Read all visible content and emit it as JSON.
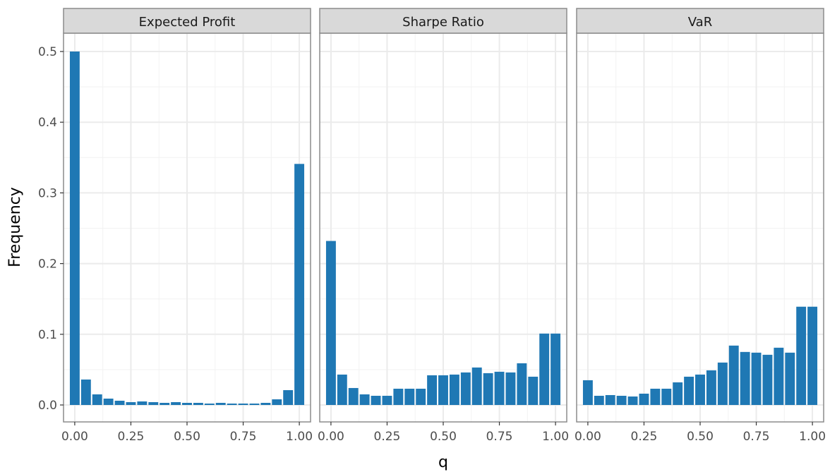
{
  "chart_data": {
    "type": "bar",
    "layout": "facets",
    "xlabel": "q",
    "ylabel": "Frequency",
    "xlim": [
      -0.05,
      1.05
    ],
    "ylim": [
      0,
      0.52
    ],
    "x_ticks": [
      0,
      0.25,
      0.5,
      0.75,
      1.0
    ],
    "x_tick_labels": [
      "0.00",
      "0.25",
      "0.50",
      "0.75",
      "1.00"
    ],
    "y_ticks": [
      0,
      0.1,
      0.2,
      0.3,
      0.4,
      0.5
    ],
    "y_tick_labels": [
      "0.0",
      "0.1",
      "0.2",
      "0.3",
      "0.4",
      "0.5"
    ],
    "bar_color": "#1f78b4",
    "grid": true,
    "theme": "bw",
    "bins_x": [
      0.0,
      0.05,
      0.1,
      0.15,
      0.2,
      0.25,
      0.3,
      0.35,
      0.4,
      0.45,
      0.5,
      0.55,
      0.6,
      0.65,
      0.7,
      0.75,
      0.8,
      0.85,
      0.9,
      0.95,
      1.0
    ],
    "facets": [
      {
        "label": "Expected Profit",
        "values": [
          0.5,
          0.036,
          0.015,
          0.009,
          0.006,
          0.004,
          0.005,
          0.004,
          0.003,
          0.004,
          0.003,
          0.003,
          0.002,
          0.003,
          0.002,
          0.002,
          0.002,
          0.003,
          0.008,
          0.021,
          0.341
        ]
      },
      {
        "label": "Sharpe Ratio",
        "values": [
          0.232,
          0.043,
          0.024,
          0.015,
          0.013,
          0.013,
          0.023,
          0.023,
          0.023,
          0.042,
          0.042,
          0.043,
          0.046,
          0.053,
          0.045,
          0.047,
          0.046,
          0.059,
          0.04,
          0.101,
          0.101
        ]
      },
      {
        "label": "VaR",
        "values": [
          0.035,
          0.013,
          0.014,
          0.013,
          0.012,
          0.016,
          0.023,
          0.023,
          0.032,
          0.04,
          0.043,
          0.049,
          0.06,
          0.084,
          0.075,
          0.074,
          0.071,
          0.081,
          0.074,
          0.139,
          0.139
        ]
      }
    ]
  }
}
